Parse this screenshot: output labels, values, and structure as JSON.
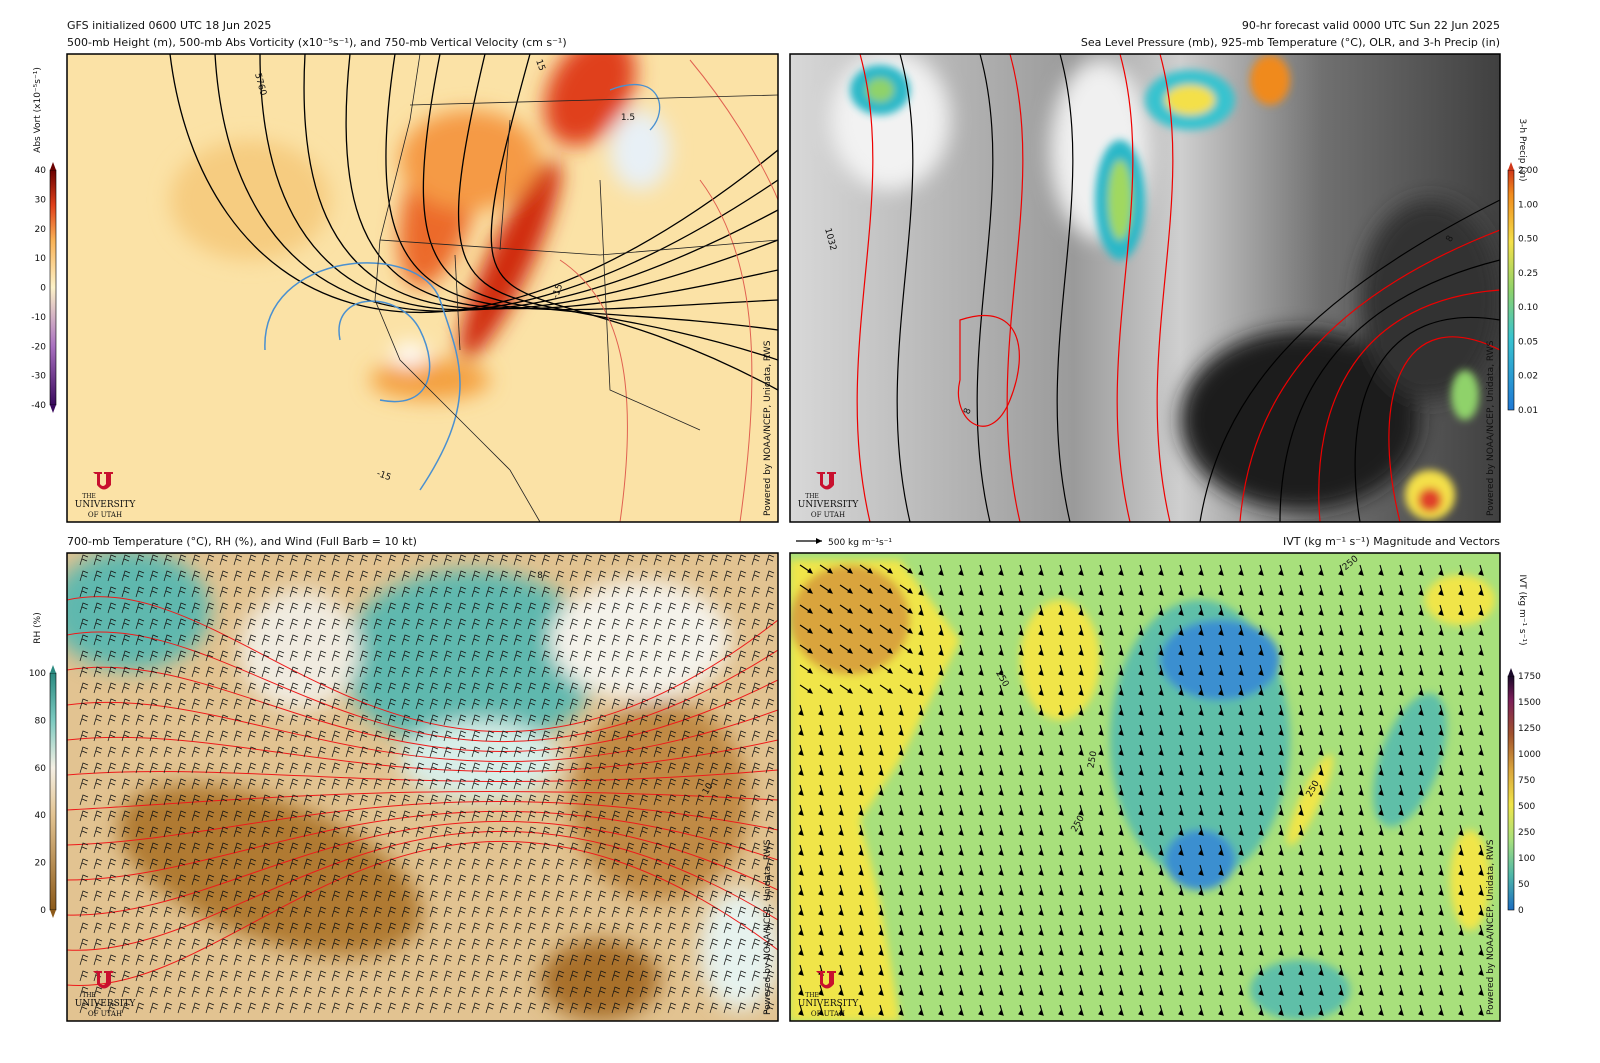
{
  "header": {
    "init": "GFS initialized 0600 UTC 18 Jun 2025",
    "valid": "90-hr forecast valid 0000 UTC Sun 22 Jun 2025"
  },
  "panels": [
    {
      "title": "500-mb Height (m), 500-mb Abs Vorticity (x10⁻⁵s⁻¹), and 750-mb Vertical Velocity (cm s⁻¹)",
      "colorbar": {
        "label": "Abs Vort (x10⁻⁵s⁻¹)",
        "ticks": [
          "40",
          "30",
          "20",
          "10",
          "0",
          "-10",
          "-20",
          "-30",
          "-40"
        ]
      },
      "contour_labels": [
        "5760",
        "1.5",
        "-15",
        "-15",
        "15"
      ]
    },
    {
      "title": "Sea Level Pressure (mb), 925-mb Temperature (°C), OLR, and 3-h Precip (in)",
      "colorbar": {
        "label": "3-h Precip (in)",
        "ticks": [
          "2.00",
          "1.00",
          "0.50",
          "0.25",
          "0.10",
          "0.05",
          "0.02",
          "0.01"
        ]
      },
      "contour_labels": [
        "1032",
        "8",
        "8"
      ]
    },
    {
      "title": "700-mb Temperature (°C), RH (%), and Wind (Full Barb = 10 kt)",
      "colorbar": {
        "label": "RH (%)",
        "ticks": [
          "100",
          "80",
          "60",
          "40",
          "20",
          "0"
        ]
      },
      "contour_labels": [
        "8",
        "10"
      ]
    },
    {
      "title": "IVT (kg m⁻¹ s⁻¹) Magnitude and Vectors",
      "reference_vector": "500 kg m⁻¹s⁻¹",
      "colorbar": {
        "label": "IVT (kg m⁻¹ s⁻¹)",
        "ticks": [
          "1750",
          "1500",
          "1250",
          "1000",
          "750",
          "500",
          "250",
          "100",
          "50",
          "0"
        ]
      },
      "contour_labels": [
        "250",
        "250",
        "250",
        "250",
        "250"
      ]
    }
  ],
  "logo": {
    "line1": "THE",
    "line2": "UNIVERSITY",
    "line3": "OF UTAH"
  },
  "credit": "Powered by NOAA/NCEP, Unidata, RWS"
}
